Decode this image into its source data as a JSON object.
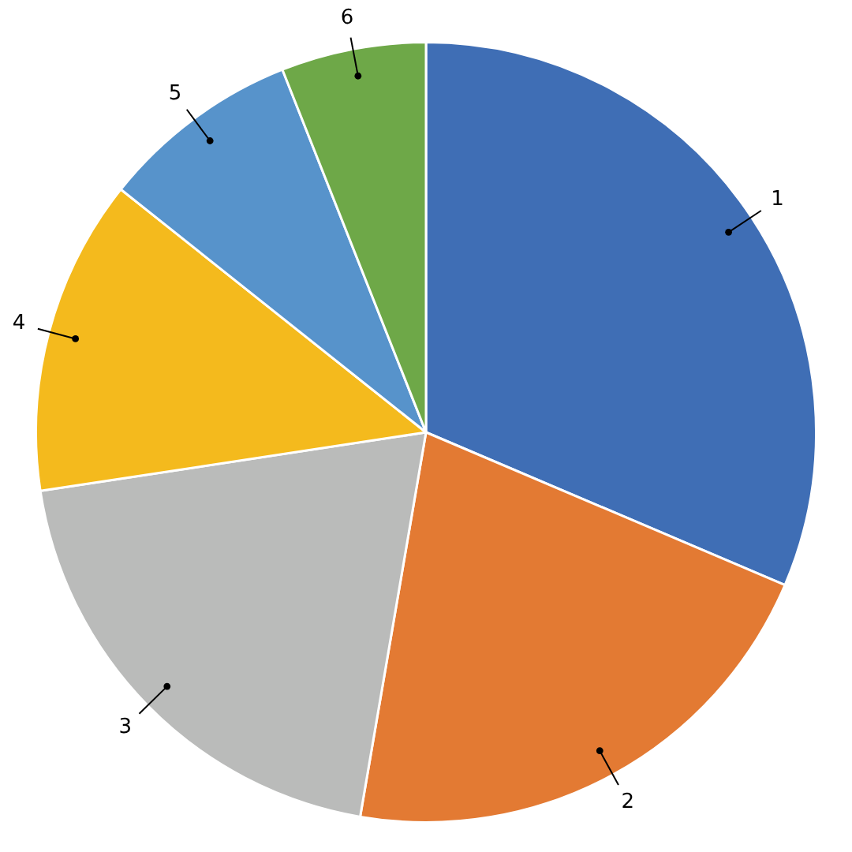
{
  "chart_data": {
    "type": "pie",
    "categories": [
      "1",
      "2",
      "3",
      "4",
      "5",
      "6"
    ],
    "values": [
      31.4,
      21.3,
      19.9,
      13.1,
      8.3,
      6.0
    ],
    "colors": [
      "#3f6eb5",
      "#e37a33",
      "#babbba",
      "#f4ba1d",
      "#5793cb",
      "#6ea848"
    ],
    "legend": false
  }
}
